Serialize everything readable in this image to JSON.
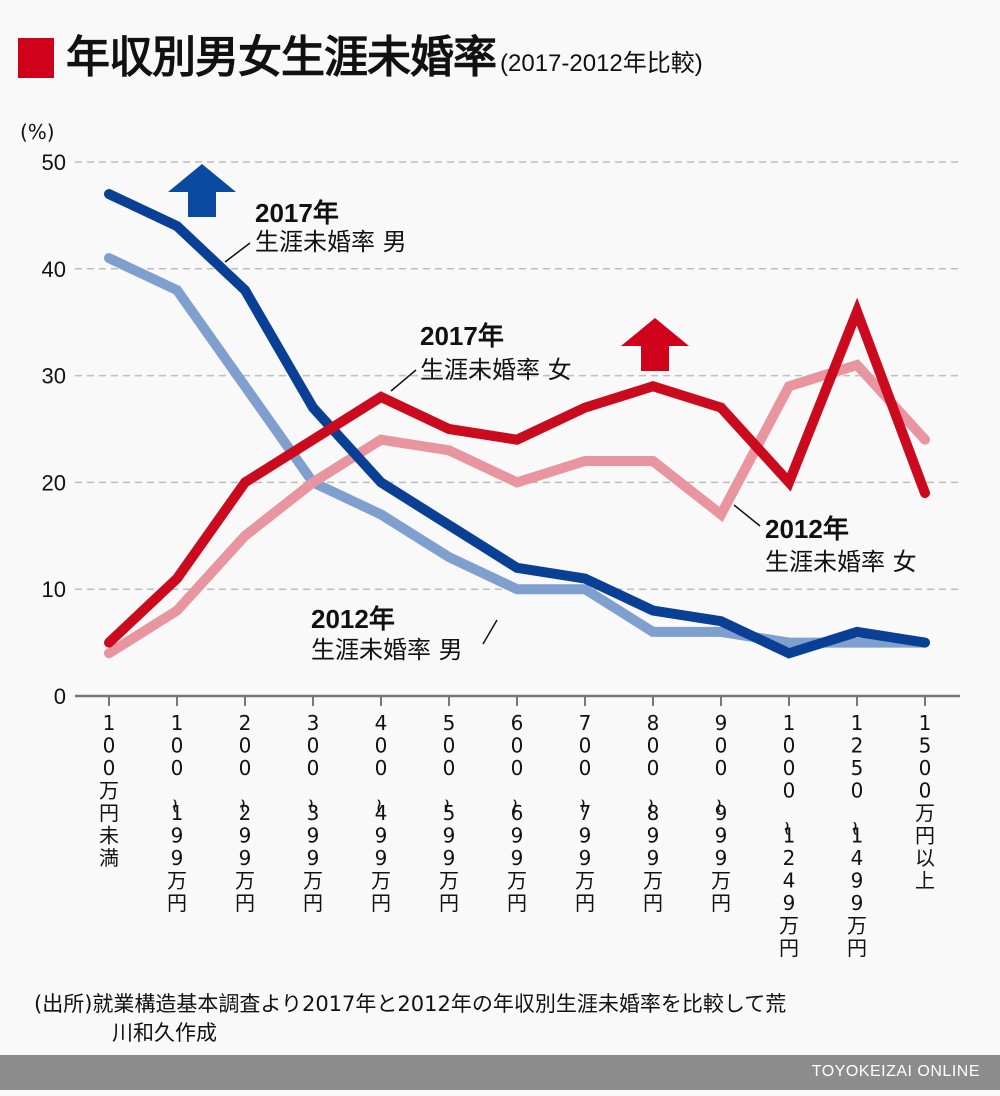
{
  "header": {
    "title": "年収別男女生涯未婚率",
    "subtitle": "(2017-2012年比較)",
    "accent_color": "#d0021b"
  },
  "chart_data": {
    "type": "line",
    "title": "年収別男女生涯未婚率 (2017-2012年比較)",
    "ylabel": "(%)",
    "xlabel": "",
    "ylim": [
      0,
      50
    ],
    "yticks": [
      0,
      10,
      20,
      30,
      40,
      50
    ],
    "grid": true,
    "categories": [
      "100万円未満",
      "100~199万円",
      "200~299万円",
      "300~399万円",
      "400~499万円",
      "500~599万円",
      "600~699万円",
      "700~799万円",
      "800~899万円",
      "900~999万円",
      "1000~1249万円",
      "1250~1499万円",
      "1500万円以上"
    ],
    "series": [
      {
        "name": "2012年 生涯未婚率 男",
        "color": "#7f9fcf",
        "values": [
          41,
          38,
          29,
          20,
          17,
          13,
          10,
          10,
          6,
          6,
          5,
          5,
          5
        ]
      },
      {
        "name": "2012年 生涯未婚率 女",
        "color": "#e8959f",
        "values": [
          4,
          8,
          15,
          20,
          24,
          23,
          20,
          22,
          22,
          17,
          29,
          31,
          24
        ]
      },
      {
        "name": "2017年 生涯未婚率 男",
        "color": "#0a3f96",
        "values": [
          47,
          44,
          38,
          27,
          20,
          16,
          12,
          11,
          8,
          7,
          4,
          6,
          5
        ]
      },
      {
        "name": "2017年 生涯未婚率 女",
        "color": "#cc0a1e",
        "values": [
          5,
          11,
          20,
          24,
          28,
          25,
          24,
          27,
          29,
          27,
          20,
          36,
          19
        ]
      }
    ],
    "annotations": [
      {
        "line1": "2017年",
        "line2": "生涯未婚率 男",
        "series": "2017年 生涯未婚率 男"
      },
      {
        "line1": "2017年",
        "line2": "生涯未婚率 女",
        "series": "2017年 生涯未婚率 女"
      },
      {
        "line1": "2012年",
        "line2": "生涯未婚率 女",
        "series": "2012年 生涯未婚率 女"
      },
      {
        "line1": "2012年",
        "line2": "生涯未婚率 男",
        "series": "2012年 生涯未婚率 男"
      }
    ],
    "arrows": [
      {
        "icon": "up-arrow-icon",
        "color": "#0a4aa0",
        "meaning": "男 increase"
      },
      {
        "icon": "up-arrow-icon",
        "color": "#d0021b",
        "meaning": "女 increase"
      }
    ]
  },
  "source": {
    "line1": "(出所)就業構造基本調査より2017年と2012年の年収別生涯未婚率を比較して荒",
    "line2": "川和久作成"
  },
  "footer": {
    "brand": "TOYOKEIZAI ONLINE"
  }
}
